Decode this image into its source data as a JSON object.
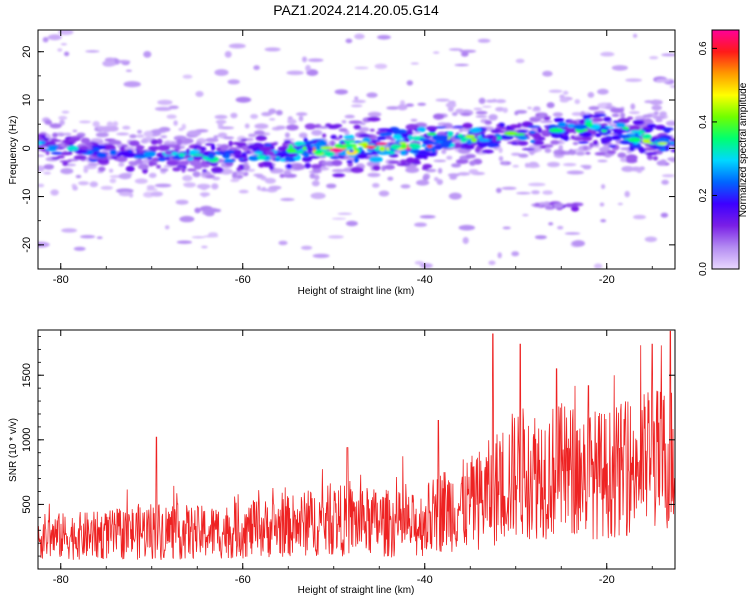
{
  "title": "PAZ1.2024.214.20.05.G14",
  "chart_data": [
    {
      "type": "heatmap",
      "xlabel": "Height of straight line (km)",
      "ylabel": "Frequency (Hz)",
      "xlim": [
        -82.5,
        -12.5
      ],
      "ylim": [
        -25,
        24.5
      ],
      "xticks": [
        -80,
        -60,
        -40,
        -20
      ],
      "yticks": [
        -20,
        -10,
        0,
        10,
        20
      ],
      "grid": false,
      "colorbar": {
        "label": "Normalized spectral amplitude",
        "range": [
          0.0,
          0.65
        ],
        "ticks": [
          0.0,
          0.2,
          0.4,
          0.6
        ],
        "colors": [
          "#e9d8ff",
          "#b48cf2",
          "#7a1fe6",
          "#3d00ff",
          "#0066ff",
          "#00d8ff",
          "#00ff70",
          "#70ff00",
          "#ffff00",
          "#ff9900",
          "#ff1a1a",
          "#ff0099"
        ]
      },
      "ridge": {
        "x": [
          -82,
          -78,
          -74,
          -70,
          -66,
          -62,
          -58,
          -54,
          -50,
          -46,
          -42,
          -38,
          -34,
          -30,
          -26,
          -22,
          -18,
          -14,
          -12.5
        ],
        "y": [
          0.5,
          -0.5,
          -1.5,
          -1.5,
          -1.5,
          -1.5,
          -1.0,
          -0.5,
          -0.5,
          0.5,
          1.0,
          1.5,
          2.0,
          2.5,
          3.5,
          4.0,
          3.0,
          1.5,
          1.0
        ],
        "peak_amplitude": [
          0.3,
          0.28,
          0.25,
          0.26,
          0.3,
          0.3,
          0.32,
          0.38,
          0.62,
          0.55,
          0.65,
          0.42,
          0.38,
          0.36,
          0.34,
          0.38,
          0.42,
          0.44,
          0.36
        ]
      },
      "features": [
        {
          "x": -24.5,
          "y": -12,
          "amplitude": 0.12
        },
        {
          "x": -26.5,
          "y": -12,
          "amplitude": 0.08
        },
        {
          "x": -74,
          "y": 18,
          "amplitude": 0.06
        },
        {
          "x": -64,
          "y": -13,
          "amplitude": 0.06
        }
      ]
    },
    {
      "type": "line",
      "xlabel": "Height of straight line (km)",
      "ylabel": "SNR (10 * v/v)",
      "xlim": [
        -82.5,
        -12.5
      ],
      "ylim": [
        0,
        1850
      ],
      "xticks": [
        -80,
        -60,
        -40,
        -20
      ],
      "yticks": [
        500,
        1000,
        1500
      ],
      "grid": false,
      "color": "#ee2222",
      "trend": {
        "x": [
          -82.5,
          -75,
          -70,
          -65,
          -60,
          -55,
          -50,
          -45,
          -41,
          -38,
          -35,
          -33,
          -30,
          -25,
          -20,
          -15,
          -12.5
        ],
        "median": [
          250,
          260,
          300,
          280,
          300,
          330,
          380,
          360,
          330,
          460,
          500,
          580,
          740,
          760,
          730,
          850,
          860
        ],
        "spread": [
          180,
          190,
          230,
          210,
          220,
          240,
          280,
          270,
          250,
          330,
          370,
          420,
          520,
          530,
          500,
          560,
          580
        ]
      },
      "peaks": [
        {
          "x": -69.5,
          "y": 1020
        },
        {
          "x": -48.5,
          "y": 940
        },
        {
          "x": -38.5,
          "y": 1150
        },
        {
          "x": -32.5,
          "y": 1820
        },
        {
          "x": -29.5,
          "y": 1740
        },
        {
          "x": -25.5,
          "y": 1550
        },
        {
          "x": -22,
          "y": 1420
        },
        {
          "x": -15,
          "y": 1740
        },
        {
          "x": -13,
          "y": 1840
        }
      ]
    }
  ]
}
